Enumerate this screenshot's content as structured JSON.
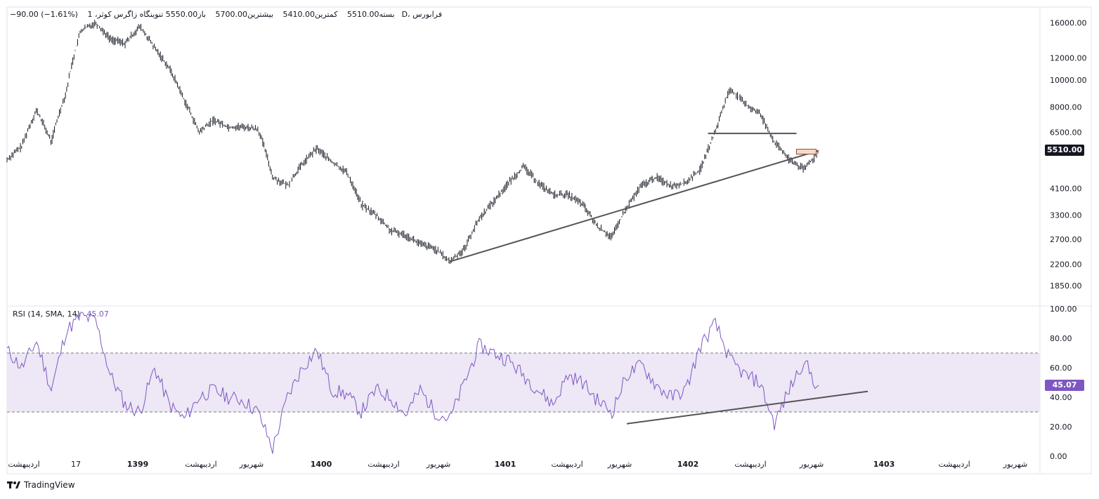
{
  "header": {
    "symbol": "تنوینگاه زاگرس کوثر، 1D، فرابورس",
    "open": "باز5550.00",
    "high": "بیشترین5700.00",
    "low": "کمترین5410.00",
    "close": "بسته5510.00",
    "change": "−90.00 (−1.61%)"
  },
  "rsi_legend": {
    "label": "RSI (14, SMA, 14)",
    "value": "45.07"
  },
  "badges": {
    "price": "5510.00",
    "rsi": "45.07"
  },
  "colors": {
    "candles": "#131722",
    "rsi_line": "#7e57c2",
    "rsi_band": "#ede7f6",
    "trendline": "#555555",
    "price_badge": "#131722",
    "rsi_badge": "#7e57c2"
  },
  "footer": {
    "brand": "TradingView",
    "logo_icon": "tradingview-logo-icon"
  },
  "chart_data": [
    {
      "type": "line",
      "name": "price",
      "y_scale": "log",
      "yticks": [
        "16000.00",
        "12000.00",
        "10000.00",
        "8000.00",
        "6500.00",
        "5510.00",
        "4100.00",
        "3300.00",
        "2700.00",
        "2200.00",
        "1850.00"
      ],
      "xticks": [
        "اردیبهشت",
        "17",
        "1399",
        "اردیبهشت",
        "شهریور",
        "1400",
        "اردیبهشت",
        "شهریور",
        "1401",
        "اردیبهشت",
        "شهریور",
        "1402",
        "اردیبهشت",
        "شهریور",
        "1403",
        "اردیبهشت",
        "شهریور"
      ],
      "x": [
        0,
        4,
        8,
        12,
        16,
        20,
        24,
        28,
        32,
        36,
        40,
        44,
        48,
        52,
        56,
        60,
        64,
        68,
        72,
        76,
        80,
        84,
        88,
        92,
        96,
        100,
        104,
        108,
        112,
        116,
        120,
        124,
        128,
        132,
        136,
        140,
        144,
        148,
        152,
        156,
        160,
        164,
        168,
        172,
        176,
        180,
        184,
        188,
        192,
        196,
        200,
        204,
        208,
        212,
        216,
        220
      ],
      "values": [
        5200,
        5800,
        7800,
        6000,
        9000,
        15000,
        16000,
        14000,
        13500,
        15500,
        13000,
        11000,
        8500,
        6500,
        7200,
        6800,
        6800,
        6700,
        4500,
        4200,
        5000,
        5700,
        5100,
        4700,
        3600,
        3300,
        2900,
        2800,
        2600,
        2500,
        2250,
        2500,
        3200,
        3700,
        4300,
        4900,
        4300,
        3900,
        3900,
        3600,
        3000,
        2750,
        3500,
        4200,
        4500,
        4200,
        4300,
        4800,
        6500,
        9300,
        8200,
        7600,
        6000,
        5200,
        4800,
        5510
      ],
      "trendlines": [
        {
          "from": [
            120,
            2250
          ],
          "to": [
            220,
            5600
          ]
        },
        {
          "from": [
            190,
            6450
          ],
          "to": [
            214,
            6450
          ]
        }
      ]
    },
    {
      "type": "line",
      "name": "RSI (14, SMA, 14)",
      "ylim": [
        0,
        100
      ],
      "yticks": [
        "100.00",
        "80.00",
        "60.00",
        "40.00",
        "20.00",
        "0.00"
      ],
      "bands": [
        30,
        70
      ],
      "x": [
        0,
        4,
        8,
        12,
        16,
        20,
        24,
        28,
        32,
        36,
        40,
        44,
        48,
        52,
        56,
        60,
        64,
        68,
        72,
        76,
        80,
        84,
        88,
        92,
        96,
        100,
        104,
        108,
        112,
        116,
        120,
        124,
        128,
        132,
        136,
        140,
        144,
        148,
        152,
        156,
        160,
        164,
        168,
        172,
        176,
        180,
        184,
        188,
        192,
        196,
        200,
        204,
        208,
        212,
        216,
        220
      ],
      "values": [
        72,
        60,
        78,
        45,
        85,
        95,
        92,
        55,
        35,
        30,
        60,
        35,
        25,
        40,
        45,
        40,
        38,
        30,
        5,
        40,
        60,
        72,
        45,
        42,
        30,
        45,
        40,
        28,
        45,
        30,
        25,
        50,
        75,
        70,
        65,
        55,
        45,
        35,
        55,
        50,
        38,
        30,
        55,
        62,
        48,
        40,
        45,
        75,
        90,
        65,
        55,
        50,
        22,
        45,
        65,
        45
      ],
      "trendline": {
        "from": [
          168,
          22
        ],
        "to": [
          220,
          40
        ]
      }
    }
  ]
}
